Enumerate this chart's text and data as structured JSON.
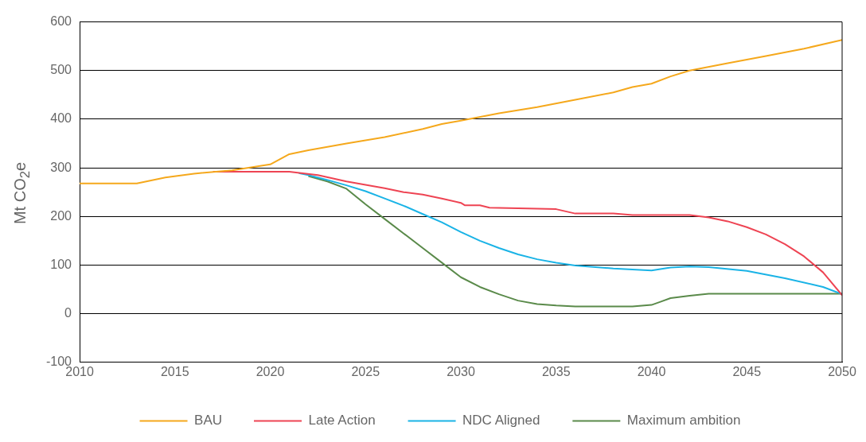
{
  "chart_data": {
    "type": "line",
    "ylabel": "Mt CO$_{2}$e",
    "xlim": [
      2010,
      2050
    ],
    "xticks": [
      2010,
      2015,
      2020,
      2025,
      2030,
      2035,
      2040,
      2045,
      2050
    ],
    "ylim": [
      -100,
      600
    ],
    "yticks": [
      -100,
      0,
      100,
      200,
      300,
      400,
      500,
      600
    ],
    "grid": "y",
    "legend": "bottom",
    "marker": "none",
    "line_style": "solid",
    "series": [
      {
        "name": "BAU",
        "color": "#f5a81c",
        "x": [
          2010,
          2013,
          2014.5,
          2016,
          2018,
          2020,
          2021,
          2022,
          2024,
          2026,
          2028,
          2029,
          2030,
          2032,
          2034,
          2036,
          2038,
          2039,
          2040,
          2041,
          2042,
          2044,
          2046,
          2048,
          2050
        ],
        "values": [
          268,
          268,
          280,
          288,
          295,
          307,
          328,
          336,
          350,
          363,
          380,
          390,
          397,
          412,
          425,
          440,
          455,
          466,
          473,
          488,
          500,
          515,
          530,
          545,
          563
        ]
      },
      {
        "name": "Late Action",
        "color": "#ee4453",
        "x": [
          2017,
          2021,
          2022.5,
          2024,
          2026,
          2027,
          2028,
          2029,
          2030,
          2030.2,
          2031,
          2031.5,
          2033,
          2035,
          2036,
          2038,
          2039,
          2042,
          2043,
          2044,
          2045,
          2046,
          2047,
          2048,
          2049,
          2050
        ],
        "values": [
          292,
          292,
          285,
          272,
          258,
          250,
          245,
          237,
          228,
          223,
          223,
          218,
          217,
          215,
          206,
          206,
          203,
          203,
          198,
          190,
          178,
          163,
          143,
          118,
          85,
          38
        ]
      },
      {
        "name": "NDC Aligned",
        "color": "#1ab3e6",
        "x": [
          2021.5,
          2022,
          2023,
          2024,
          2025,
          2026,
          2027,
          2028,
          2029,
          2030,
          2031,
          2032,
          2033,
          2034,
          2035,
          2036,
          2038,
          2040,
          2041,
          2042,
          2043,
          2045,
          2047,
          2049,
          2050
        ],
        "values": [
          289,
          285,
          275,
          264,
          252,
          237,
          222,
          205,
          188,
          168,
          150,
          135,
          122,
          112,
          105,
          99,
          93,
          89,
          95,
          97,
          96,
          88,
          73,
          55,
          40
        ]
      },
      {
        "name": "Maximum ambition",
        "color": "#5a8a4a",
        "x": [
          2022,
          2023,
          2024,
          2025,
          2026,
          2027,
          2028,
          2029,
          2030,
          2031,
          2032,
          2033,
          2034,
          2035,
          2036,
          2039,
          2040,
          2040.5,
          2041,
          2042,
          2043,
          2050
        ],
        "values": [
          283,
          272,
          257,
          225,
          195,
          165,
          135,
          105,
          75,
          55,
          40,
          27,
          20,
          17,
          15,
          15,
          18,
          25,
          32,
          37,
          41,
          41
        ]
      }
    ]
  }
}
